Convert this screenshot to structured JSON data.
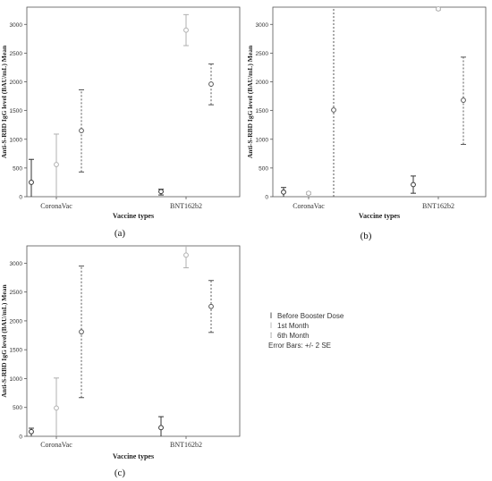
{
  "chart_data": [
    {
      "type": "errorbar",
      "panel_label": "(a)",
      "xlabel": "Vaccine types",
      "ylabel": "Anti-S-RBD IgG level (BAU/mL) Mean",
      "categories": [
        "CoronaVac",
        "BNT162b2"
      ],
      "yticks": [
        "0",
        "500",
        "1000",
        "1500",
        "2000",
        "2500",
        "3000"
      ],
      "ylim": [
        0,
        3300
      ],
      "series": [
        {
          "name": "Before Booster Dose",
          "values": [
            250,
            90
          ],
          "lower": [
            0,
            30
          ],
          "upper": [
            650,
            130
          ]
        },
        {
          "name": "1st Month",
          "values": [
            560,
            2900
          ],
          "lower": [
            0,
            2630
          ],
          "upper": [
            1090,
            3170
          ]
        },
        {
          "name": "6th Month",
          "values": [
            1150,
            1960
          ],
          "lower": [
            430,
            1600
          ],
          "upper": [
            1860,
            2310
          ]
        }
      ]
    },
    {
      "type": "errorbar",
      "panel_label": "(b)",
      "xlabel": "Vaccine types",
      "ylabel": "Anti-S-RBD IgG level (BAU/mL) Mean",
      "categories": [
        "CoronaVac",
        "BNT162b2"
      ],
      "yticks": [
        "0",
        "500",
        "1000",
        "1500",
        "2000",
        "2500",
        "3000"
      ],
      "ylim": [
        0,
        3300
      ],
      "series": [
        {
          "name": "Before Booster Dose",
          "values": [
            80,
            210
          ],
          "lower": [
            0,
            60
          ],
          "upper": [
            160,
            360
          ]
        },
        {
          "name": "1st Month",
          "values": [
            60,
            3270
          ],
          "lower": [
            40,
            3250
          ],
          "upper": [
            80,
            3290
          ]
        },
        {
          "name": "6th Month",
          "values": [
            1510,
            1680
          ],
          "lower": [
            0,
            910
          ],
          "upper": [
            3300,
            2430
          ]
        }
      ]
    },
    {
      "type": "errorbar",
      "panel_label": "(c)",
      "xlabel": "Vaccine types",
      "ylabel": "Anti-S-RBD IgG level (BAU/mL) Mean",
      "categories": [
        "CoronaVac",
        "BNT162b2"
      ],
      "yticks": [
        "0",
        "500",
        "1000",
        "1500",
        "2000",
        "2500",
        "3000"
      ],
      "ylim": [
        0,
        3300
      ],
      "series": [
        {
          "name": "Before Booster Dose",
          "values": [
            80,
            150
          ],
          "lower": [
            0,
            0
          ],
          "upper": [
            140,
            340
          ]
        },
        {
          "name": "1st Month",
          "values": [
            490,
            3140
          ],
          "lower": [
            0,
            2920
          ],
          "upper": [
            1010,
            3300
          ]
        },
        {
          "name": "6th Month",
          "values": [
            1810,
            2250
          ],
          "lower": [
            670,
            1800
          ],
          "upper": [
            2950,
            2700
          ]
        }
      ]
    }
  ],
  "legend": {
    "items": [
      "Before Booster Dose",
      "1st Month",
      "6th Month"
    ],
    "note": "Error Bars: +/- 2 SE"
  },
  "colors": {
    "before": "#333333",
    "first_month": "#b0b0b0",
    "sixth_month": "#555555",
    "axis": "#555555"
  }
}
